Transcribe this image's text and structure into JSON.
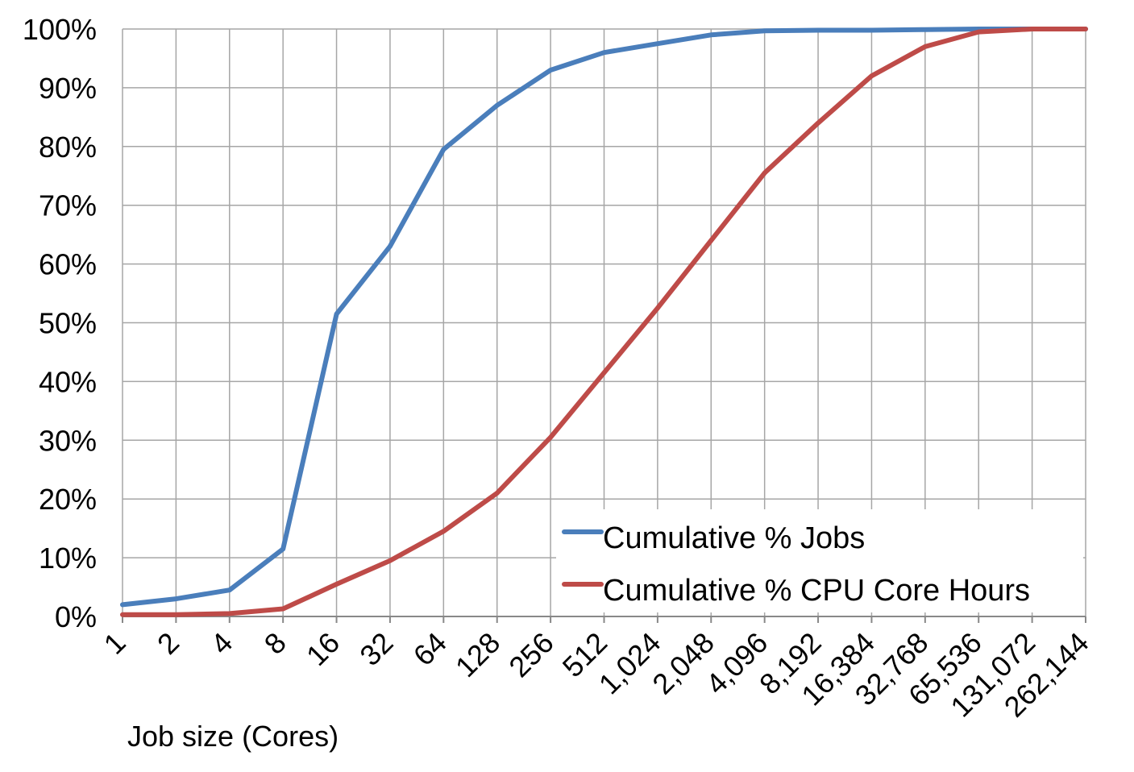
{
  "chart_data": {
    "type": "line",
    "title": "",
    "xlabel": "Job size (Cores)",
    "ylabel": "",
    "categories": [
      "1",
      "2",
      "4",
      "8",
      "16",
      "32",
      "64",
      "128",
      "256",
      "512",
      "1,024",
      "2,048",
      "4,096",
      "8,192",
      "16,384",
      "32,768",
      "65,536",
      "131,072",
      "262,144"
    ],
    "y_ticks": [
      "0%",
      "10%",
      "20%",
      "30%",
      "40%",
      "50%",
      "60%",
      "70%",
      "80%",
      "90%",
      "100%"
    ],
    "ylim": [
      0,
      100
    ],
    "grid": true,
    "legend_position": "bottom-right",
    "series": [
      {
        "name": "Cumulative % Jobs",
        "color": "#4a7ebb",
        "values": [
          2,
          3,
          4.5,
          11.5,
          51.5,
          63,
          79.5,
          87,
          93,
          96,
          97.5,
          99,
          99.7,
          99.8,
          99.8,
          99.9,
          100,
          100,
          100
        ]
      },
      {
        "name": "Cumulative % CPU Core Hours",
        "color": "#be4b48",
        "values": [
          0.3,
          0.3,
          0.5,
          1.3,
          5.5,
          9.5,
          14.5,
          21,
          30.5,
          41.5,
          52.5,
          64,
          75.5,
          84,
          92,
          97,
          99.5,
          100,
          100
        ]
      }
    ]
  }
}
